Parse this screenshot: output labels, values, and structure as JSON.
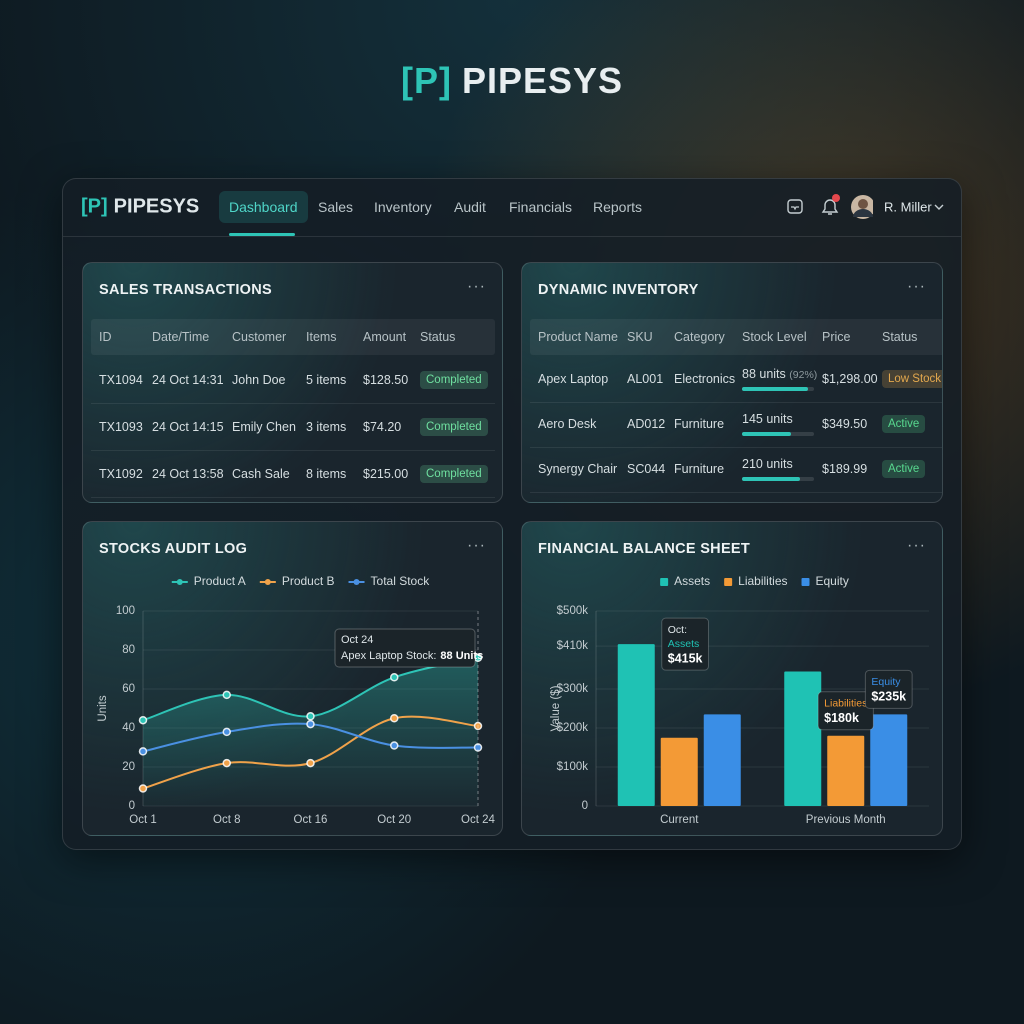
{
  "header": {
    "logo_mark": "[P]",
    "title": "PIPESYS"
  },
  "nav": {
    "logo_mark": "[P]",
    "brand": "PIPESYS",
    "items": [
      "Dashboard",
      "Sales",
      "Inventory",
      "Audit",
      "Financials",
      "Reports"
    ],
    "user": "R. Miller"
  },
  "sales": {
    "title": "SALES TRANSACTIONS",
    "columns": [
      "ID",
      "Date/Time",
      "Customer",
      "Items",
      "Amount",
      "Status"
    ],
    "rows": [
      [
        "TX1094",
        "24 Oct 14:31",
        "John Doe",
        "5 items",
        "$128.50",
        "Completed"
      ],
      [
        "TX1093",
        "24 Oct 14:15",
        "Emily Chen",
        "3 items",
        "$74.20",
        "Completed"
      ],
      [
        "TX1092",
        "24 Oct 13:58",
        "Cash Sale",
        "8 items",
        "$215.00",
        "Completed"
      ]
    ]
  },
  "inventory": {
    "title": "DYNAMIC INVENTORY",
    "columns": [
      "Product Name",
      "SKU",
      "Category",
      "Stock Level",
      "Price",
      "Status"
    ],
    "rows": [
      {
        "name": "Apex Laptop",
        "sku": "AL001",
        "category": "Electronics",
        "stock": "88 units",
        "stock_note": "(92%)",
        "fill": 92,
        "price": "$1,298.00",
        "status": "Low Stock",
        "status_color": "#e3a84e"
      },
      {
        "name": "Aero Desk",
        "sku": "AD012",
        "category": "Furniture",
        "stock": "145 units",
        "fill": 68,
        "price": "$349.50",
        "status": "Active",
        "status_color": "#58d98f"
      },
      {
        "name": "Synergy Chair",
        "sku": "SC044",
        "category": "Furniture",
        "stock": "210 units",
        "fill": 80,
        "price": "$189.99",
        "status": "Active",
        "status_color": "#58d98f"
      }
    ]
  },
  "chart_data": [
    {
      "type": "line",
      "title": "STOCKS AUDIT LOG",
      "y_label": "Units",
      "categories": [
        "Oct 1",
        "Oct 8",
        "Oct 16",
        "Oct 20",
        "Oct 24"
      ],
      "series": [
        {
          "name": "Product A",
          "color": "#2ec4b6",
          "values": [
            44,
            57,
            46,
            66,
            76
          ]
        },
        {
          "name": "Product B",
          "color": "#f0a24a",
          "values": [
            9,
            22,
            22,
            45,
            41
          ]
        },
        {
          "name": "Total Stock",
          "color": "#4a90e2",
          "values": [
            28,
            38,
            42,
            31,
            30
          ]
        }
      ],
      "ylim": [
        0,
        100
      ],
      "yticks": [
        0,
        20,
        40,
        60,
        80,
        100
      ],
      "grid": true,
      "annotation": {
        "title": "Oct 24",
        "text": "Apex Laptop Stock:",
        "value": "88 Units"
      }
    },
    {
      "type": "bar",
      "title": "FINANCIAL BALANCE SHEET",
      "y_label": "Value ($)",
      "categories": [
        "Current",
        "Previous Month"
      ],
      "series": [
        {
          "name": "Assets",
          "color": "#1fc2b4",
          "values": [
            415000,
            345000
          ],
          "value_labels": [
            "$415k",
            null
          ]
        },
        {
          "name": "Liabilities",
          "color": "#f39a36",
          "values": [
            175000,
            180000
          ],
          "value_labels": [
            null,
            "$180k"
          ]
        },
        {
          "name": "Equity",
          "color": "#3a8ee6",
          "values": [
            235000,
            235000
          ],
          "value_labels": [
            null,
            "$235k"
          ]
        }
      ],
      "ylim": [
        0,
        500000
      ],
      "yticks": [
        0,
        {
          "value": 100000,
          "label": "$100k"
        },
        {
          "value": 200000,
          "label": "$200k"
        },
        {
          "value": 300000,
          "label": "$300k"
        },
        {
          "value": 410000,
          "label": "$410k"
        },
        {
          "value": 500000,
          "label": "$500k"
        }
      ],
      "grid": true,
      "annotation": "Oct:"
    }
  ]
}
